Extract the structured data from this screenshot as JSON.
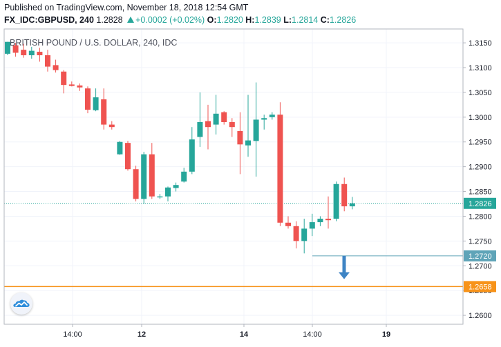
{
  "header": {
    "published": "Published on TradingView.com, November 18, 2018 12:54 GMT",
    "symbol": "FX_IDC:GBPUSD, 240",
    "last": "1.2828",
    "change": "+0.0002 (+0.02%)",
    "o_label": "O:",
    "o_value": "1.2820",
    "h_label": "H:",
    "h_value": "1.2839",
    "l_label": "L:",
    "l_value": "1.2814",
    "c_label": "C:",
    "c_value": "1.2826"
  },
  "logo_icon": "tradingview-cloud-icon",
  "chart_data": {
    "type": "candlestick",
    "title": "BRITISH POUND / U.S. DOLLAR, 240, IDC",
    "ylim": [
      1.2582,
      1.3178
    ],
    "yticks": [
      1.315,
      1.31,
      1.305,
      1.3,
      1.295,
      1.29,
      1.285,
      1.28,
      1.275,
      1.27,
      1.265,
      1.26
    ],
    "ytick_labels": [
      "1.3150",
      "1.3100",
      "1.3050",
      "1.3000",
      "1.2950",
      "1.2900",
      "1.2850",
      "1.2800",
      "1.2750",
      "1.2700",
      "1.2650",
      "1.2600"
    ],
    "xticks": [
      {
        "label": "14:00",
        "index": 7.5,
        "bold": false
      },
      {
        "label": "12",
        "index": 16.5,
        "bold": true
      },
      {
        "label": "14:00",
        "index": 29.5,
        "bold": false
      },
      {
        "label": "14",
        "index": 28.5,
        "bold": true
      },
      {
        "label": "14:00",
        "index": 37.5,
        "bold": false
      },
      {
        "label": "19",
        "index": 46.5,
        "bold": true
      }
    ],
    "up_color": "#26a69a",
    "down_color": "#ef5350",
    "candles": [
      {
        "o": 1.3128,
        "h": 1.3152,
        "l": 1.3125,
        "c": 1.3152
      },
      {
        "o": 1.3145,
        "h": 1.315,
        "l": 1.3122,
        "c": 1.313
      },
      {
        "o": 1.3136,
        "h": 1.3148,
        "l": 1.312,
        "c": 1.3125
      },
      {
        "o": 1.3125,
        "h": 1.3142,
        "l": 1.3118,
        "c": 1.3134
      },
      {
        "o": 1.3132,
        "h": 1.314,
        "l": 1.3112,
        "c": 1.3125
      },
      {
        "o": 1.3125,
        "h": 1.3136,
        "l": 1.3092,
        "c": 1.3102
      },
      {
        "o": 1.3105,
        "h": 1.3116,
        "l": 1.309,
        "c": 1.3095
      },
      {
        "o": 1.3092,
        "h": 1.3095,
        "l": 1.3048,
        "c": 1.3065
      },
      {
        "o": 1.3066,
        "h": 1.3072,
        "l": 1.3062,
        "c": 1.3063
      },
      {
        "o": 1.3064,
        "h": 1.3068,
        "l": 1.3053,
        "c": 1.306
      },
      {
        "o": 1.3058,
        "h": 1.3062,
        "l": 1.3008,
        "c": 1.3015
      },
      {
        "o": 1.3014,
        "h": 1.3058,
        "l": 1.3012,
        "c": 1.304
      },
      {
        "o": 1.3036,
        "h": 1.3058,
        "l": 1.2975,
        "c": 1.2985
      },
      {
        "o": 1.2985,
        "h": 1.2992,
        "l": 1.2975,
        "c": 1.298
      },
      {
        "o": 1.2925,
        "h": 1.2952,
        "l": 1.2924,
        "c": 1.295
      },
      {
        "o": 1.2948,
        "h": 1.2952,
        "l": 1.2892,
        "c": 1.2895
      },
      {
        "o": 1.2895,
        "h": 1.2902,
        "l": 1.283,
        "c": 1.2835
      },
      {
        "o": 1.2835,
        "h": 1.293,
        "l": 1.2825,
        "c": 1.2925
      },
      {
        "o": 1.2925,
        "h": 1.2948,
        "l": 1.2835,
        "c": 1.284
      },
      {
        "o": 1.2838,
        "h": 1.2845,
        "l": 1.2835,
        "c": 1.284
      },
      {
        "o": 1.284,
        "h": 1.286,
        "l": 1.283,
        "c": 1.2858
      },
      {
        "o": 1.2857,
        "h": 1.2868,
        "l": 1.285,
        "c": 1.2863
      },
      {
        "o": 1.287,
        "h": 1.2898,
        "l": 1.2868,
        "c": 1.289
      },
      {
        "o": 1.289,
        "h": 1.298,
        "l": 1.2885,
        "c": 1.2955
      },
      {
        "o": 1.296,
        "h": 1.305,
        "l": 1.294,
        "c": 1.299
      },
      {
        "o": 1.2992,
        "h": 1.3025,
        "l": 1.2935,
        "c": 1.298
      },
      {
        "o": 1.2985,
        "h": 1.3045,
        "l": 1.2965,
        "c": 1.3007
      },
      {
        "o": 1.301,
        "h": 1.3012,
        "l": 1.2985,
        "c": 1.299
      },
      {
        "o": 1.299,
        "h": 1.2998,
        "l": 1.296,
        "c": 1.298
      },
      {
        "o": 1.2972,
        "h": 1.301,
        "l": 1.2885,
        "c": 1.2945
      },
      {
        "o": 1.2943,
        "h": 1.3045,
        "l": 1.292,
        "c": 1.2953
      },
      {
        "o": 1.2952,
        "h": 1.307,
        "l": 1.288,
        "c": 1.2995
      },
      {
        "o": 1.2995,
        "h": 1.3005,
        "l": 1.2975,
        "c": 1.2998
      },
      {
        "o": 1.3,
        "h": 1.301,
        "l": 1.2995,
        "c": 1.3005
      },
      {
        "o": 1.3005,
        "h": 1.303,
        "l": 1.278,
        "c": 1.2787
      },
      {
        "o": 1.2787,
        "h": 1.28,
        "l": 1.2775,
        "c": 1.278
      },
      {
        "o": 1.278,
        "h": 1.279,
        "l": 1.2735,
        "c": 1.275
      },
      {
        "o": 1.275,
        "h": 1.2795,
        "l": 1.2725,
        "c": 1.2775
      },
      {
        "o": 1.2775,
        "h": 1.2805,
        "l": 1.276,
        "c": 1.2788
      },
      {
        "o": 1.2788,
        "h": 1.28,
        "l": 1.278,
        "c": 1.2795
      },
      {
        "o": 1.2795,
        "h": 1.284,
        "l": 1.2775,
        "c": 1.2792
      },
      {
        "o": 1.2795,
        "h": 1.287,
        "l": 1.279,
        "c": 1.2865
      },
      {
        "o": 1.2865,
        "h": 1.2878,
        "l": 1.281,
        "c": 1.282
      },
      {
        "o": 1.282,
        "h": 1.2839,
        "l": 1.2814,
        "c": 1.2826
      }
    ],
    "price_line": {
      "value": 1.2826,
      "label": "1.2826",
      "color": "#26a69a"
    },
    "level_1272": {
      "value": 1.272,
      "label": "1.2720",
      "color": "#5fa4b8",
      "from_index": 37
    },
    "level_1265": {
      "value": 1.2658,
      "label": "1.2658",
      "color": "#f7931a"
    },
    "arrow": {
      "index": 41,
      "from": 1.272,
      "to": 1.2673,
      "color": "#3e84c4"
    }
  }
}
